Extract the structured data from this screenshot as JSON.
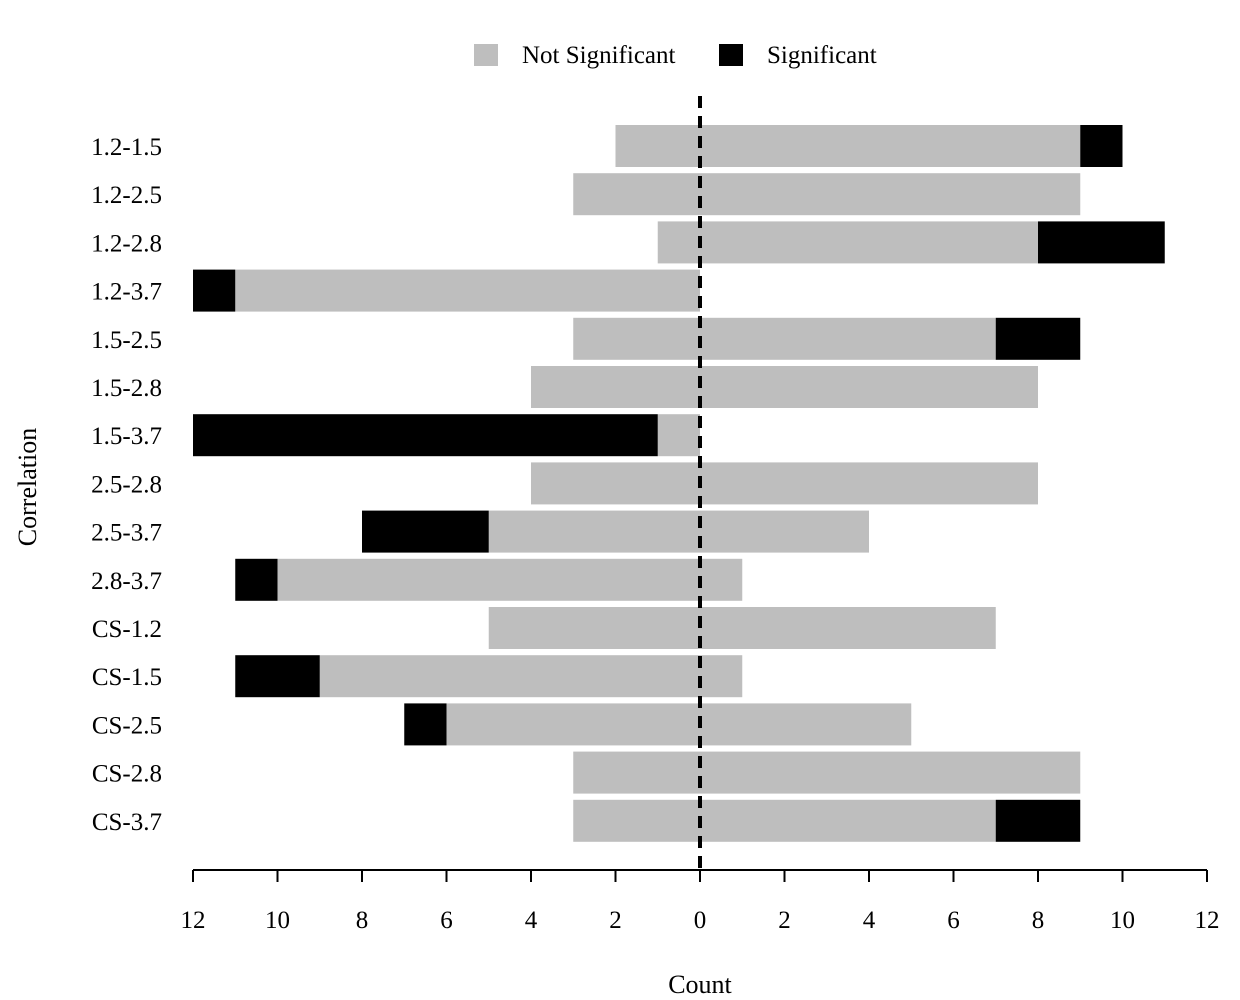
{
  "chart_data": {
    "type": "bar",
    "orientation": "horizontal",
    "stacked": true,
    "diverging": true,
    "xlabel": "Count",
    "ylabel": "Correlation",
    "xlim": [
      -12,
      12
    ],
    "x_ticks": [
      -12,
      -10,
      -8,
      -6,
      -4,
      -2,
      0,
      2,
      4,
      6,
      8,
      10,
      12
    ],
    "x_tick_labels": [
      "12",
      "10",
      "8",
      "6",
      "4",
      "2",
      "0",
      "2",
      "4",
      "6",
      "8",
      "10",
      "12"
    ],
    "reference_line": {
      "x": 0,
      "style": "dashed"
    },
    "legend_position": "top",
    "categories": [
      "1.2-1.5",
      "1.2-2.5",
      "1.2-2.8",
      "1.2-3.7",
      "1.5-2.5",
      "1.5-2.8",
      "1.5-3.7",
      "2.5-2.8",
      "2.5-3.7",
      "2.8-3.7",
      "CS-1.2",
      "CS-1.5",
      "CS-2.5",
      "CS-2.8",
      "CS-3.7"
    ],
    "series": [
      {
        "name": "Not Significant",
        "color": "#bebebe",
        "negative": [
          2,
          3,
          1,
          11,
          3,
          4,
          1,
          4,
          5,
          10,
          5,
          9,
          6,
          3,
          3
        ],
        "positive": [
          9,
          9,
          8,
          0,
          7,
          8,
          0,
          8,
          4,
          1,
          7,
          1,
          5,
          9,
          7
        ]
      },
      {
        "name": "Significant",
        "color": "#000000",
        "negative": [
          0,
          0,
          0,
          1,
          0,
          0,
          11,
          0,
          3,
          1,
          0,
          2,
          1,
          0,
          0
        ],
        "positive": [
          1,
          0,
          3,
          0,
          2,
          0,
          0,
          0,
          0,
          0,
          0,
          0,
          0,
          0,
          2
        ]
      }
    ]
  }
}
